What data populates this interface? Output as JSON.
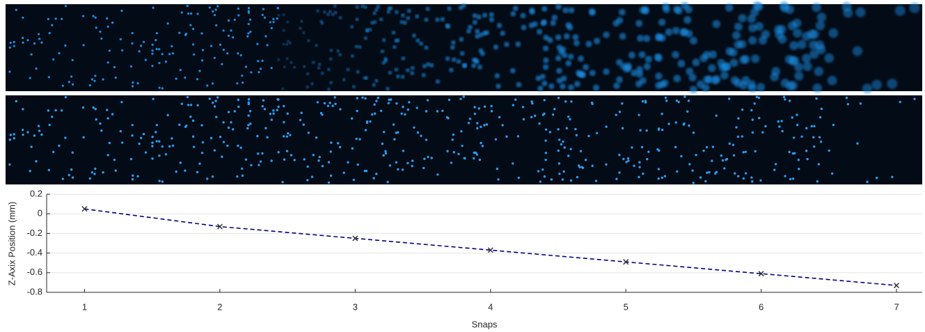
{
  "chart_data": {
    "type": "line",
    "xlabel": "Snaps",
    "ylabel": "Z-Axix Position (mm)",
    "x": [
      1,
      2,
      3,
      4,
      5,
      6,
      7
    ],
    "values": [
      0.05,
      -0.13,
      -0.25,
      -0.37,
      -0.49,
      -0.61,
      -0.73
    ],
    "color": "#000080",
    "marker_color": "#333333",
    "xlim": [
      0.72,
      7.19
    ],
    "xticks": [
      1,
      2,
      3,
      4,
      5,
      6,
      7
    ],
    "ylim": [
      -0.8,
      0.2
    ],
    "yticks": [
      -0.8,
      -0.6,
      -0.4,
      -0.2,
      0,
      0.2
    ],
    "grid": true
  }
}
